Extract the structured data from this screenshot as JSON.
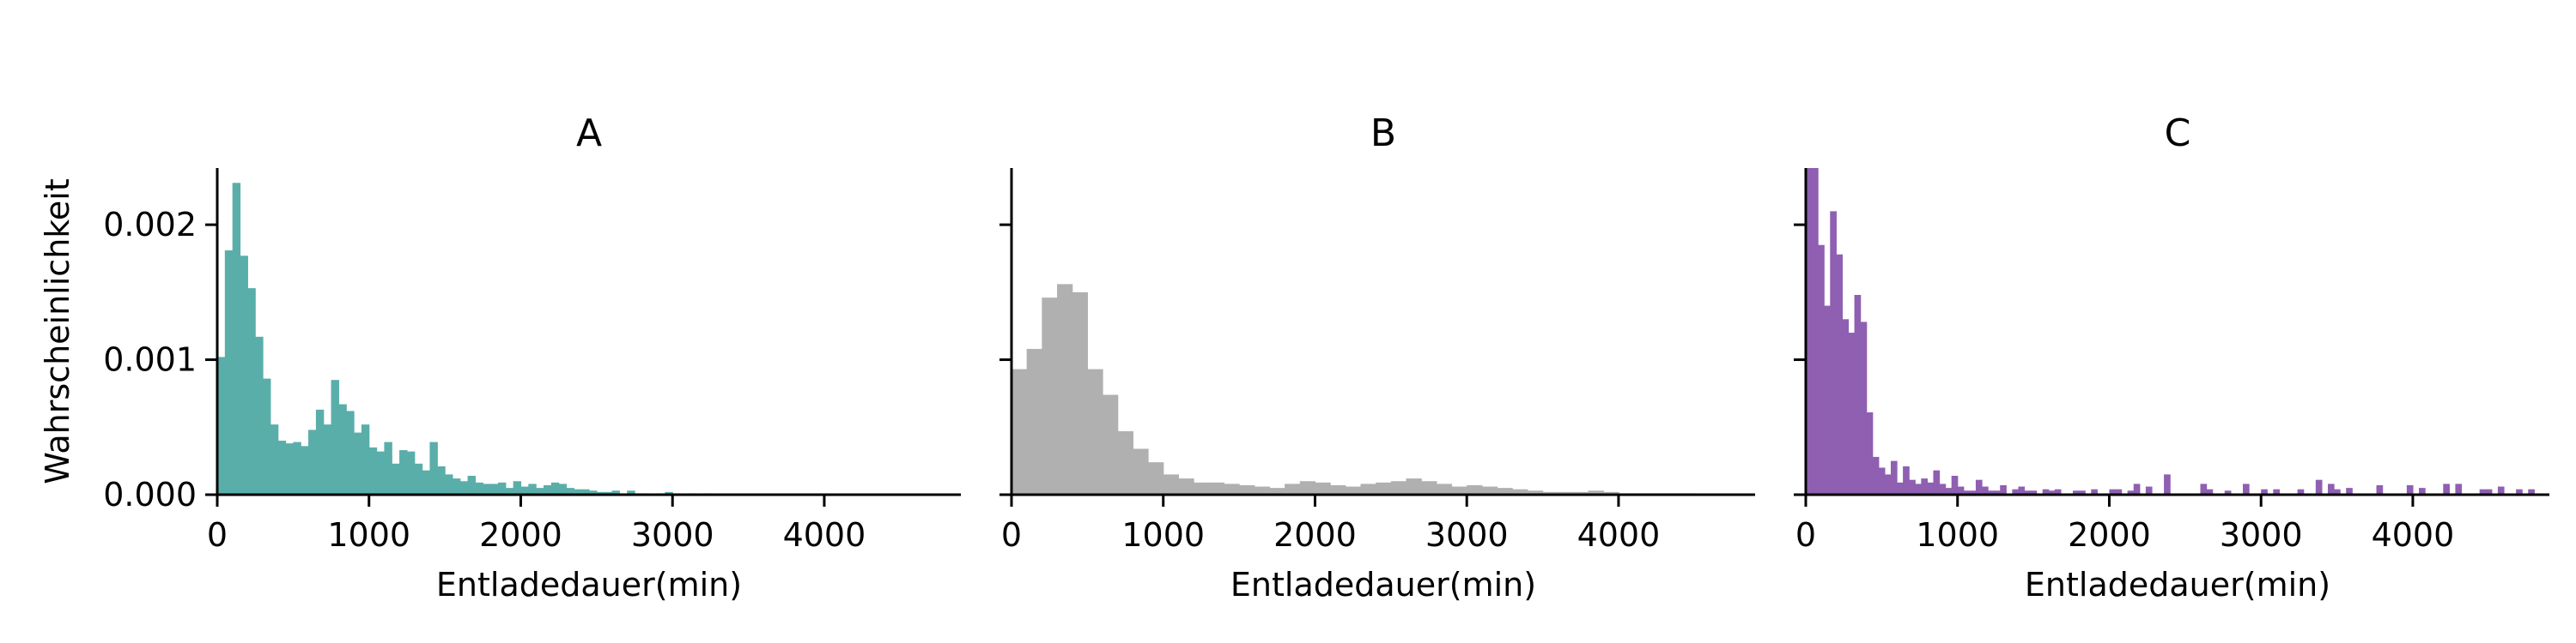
{
  "chart_data": [
    {
      "type": "histogram",
      "title": "A",
      "xlabel": "Entladedauer(min)",
      "ylabel": "Wahrscheinlichkeit",
      "color": "#5aaeaa",
      "xlim": [
        0,
        4900
      ],
      "ylim": [
        0,
        0.00242
      ],
      "xticks": [
        0,
        1000,
        2000,
        3000,
        4000
      ],
      "xtick_labels": [
        "0",
        "1000",
        "2000",
        "3000",
        "4000"
      ],
      "yticks": [
        0,
        0.001,
        0.002
      ],
      "ytick_labels": [
        "0.000",
        "0.001",
        "0.002"
      ],
      "bin_start": 0,
      "bin_width": 50,
      "values": [
        0.00102,
        0.00181,
        0.00231,
        0.00177,
        0.00153,
        0.00117,
        0.00086,
        0.00052,
        0.0004,
        0.00038,
        0.00039,
        0.00036,
        0.00048,
        0.00063,
        0.00052,
        0.00085,
        0.00067,
        0.00062,
        0.00046,
        0.00052,
        0.00035,
        0.00032,
        0.00039,
        0.00023,
        0.00033,
        0.00032,
        0.00023,
        0.00018,
        0.00039,
        0.00021,
        0.00015,
        0.00012,
        0.0001,
        0.00014,
        9e-05,
        8e-05,
        8e-05,
        9e-05,
        5e-05,
        0.0001,
        6e-05,
        8e-05,
        5e-05,
        7e-05,
        9e-05,
        8e-05,
        5e-05,
        4e-05,
        4e-05,
        3e-05,
        2e-05,
        2e-05,
        3e-05,
        1e-05,
        3e-05,
        1e-05,
        1e-05,
        0.0,
        1e-05,
        2e-05,
        1e-05,
        0.0,
        1e-05,
        0.0,
        1e-05
      ]
    },
    {
      "type": "histogram",
      "title": "B",
      "xlabel": "Entladedauer(min)",
      "color": "#b0b0b0",
      "xlim": [
        0,
        4900
      ],
      "ylim": [
        0,
        0.00242
      ],
      "xticks": [
        0,
        1000,
        2000,
        3000,
        4000
      ],
      "xtick_labels": [
        "0",
        "1000",
        "2000",
        "3000",
        "4000"
      ],
      "yticks": [
        0,
        0.001,
        0.002
      ],
      "ytick_labels": [
        "",
        "",
        ""
      ],
      "bin_start": 0,
      "bin_width": 100,
      "values": [
        0.00093,
        0.00108,
        0.00146,
        0.00156,
        0.0015,
        0.00093,
        0.00074,
        0.00047,
        0.00034,
        0.00024,
        0.00015,
        0.00012,
        9e-05,
        9e-05,
        8e-05,
        7e-05,
        6e-05,
        5e-05,
        8e-05,
        0.0001,
        9e-05,
        7e-05,
        6e-05,
        8e-05,
        9e-05,
        0.0001,
        0.00012,
        0.0001,
        8e-05,
        6e-05,
        7e-05,
        6e-05,
        5e-05,
        4e-05,
        3e-05,
        2e-05,
        2e-05,
        2e-05,
        3e-05,
        2e-05,
        1e-05,
        1e-05,
        1e-05,
        1e-05,
        1e-05
      ]
    },
    {
      "type": "histogram",
      "title": "C",
      "xlabel": "Entladedauer(min)",
      "color": "#8f5fb2",
      "xlim": [
        0,
        4900
      ],
      "ylim": [
        0,
        0.00242
      ],
      "xticks": [
        0,
        1000,
        2000,
        3000,
        4000
      ],
      "xtick_labels": [
        "0",
        "1000",
        "2000",
        "3000",
        "4000"
      ],
      "yticks": [
        0,
        0.001,
        0.002
      ],
      "ytick_labels": [
        "",
        "",
        ""
      ],
      "bin_start": 0,
      "bin_width": 40,
      "values": [
        0.00242,
        0.00242,
        0.00185,
        0.0014,
        0.0021,
        0.00178,
        0.0013,
        0.0012,
        0.00148,
        0.00128,
        0.00061,
        0.00028,
        0.0002,
        0.00015,
        0.00025,
        9e-05,
        0.00021,
        0.00011,
        8e-05,
        0.00012,
        9e-05,
        0.00018,
        8e-05,
        5e-05,
        0.00014,
        6e-05,
        3e-05,
        3e-05,
        0.00011,
        6e-05,
        3e-05,
        3e-05,
        7e-05,
        0.0,
        4e-05,
        6e-05,
        3e-05,
        3e-05,
        0.0,
        4e-05,
        3e-05,
        4e-05,
        0.0,
        0.0,
        3e-05,
        3e-05,
        0.0,
        4e-05,
        0.0,
        0.0,
        4e-05,
        4e-05,
        0.0,
        3e-05,
        8e-05,
        0.0,
        6e-05,
        0.0,
        0.0,
        0.00015,
        0.0,
        0.0,
        0.0,
        0.0,
        0.0,
        8e-05,
        4e-05,
        0.0,
        0.0,
        3e-05,
        0.0,
        0.0,
        8e-05,
        0.0,
        0.0,
        4e-05,
        0.0,
        4e-05,
        0.0,
        0.0,
        0.0,
        4e-05,
        0.0,
        0.0,
        0.00011,
        0.0,
        8e-05,
        4e-05,
        0.0,
        5e-05,
        0.0,
        0.0,
        0.0,
        0.0,
        7e-05,
        0.0,
        0.0,
        0.0,
        0.0,
        7e-05,
        0.0,
        5e-05,
        0.0,
        0.0,
        0.0,
        8e-05,
        0.0,
        8e-05,
        0.0,
        0.0,
        0.0,
        4e-05,
        4e-05,
        0.0,
        6e-05,
        0.0,
        0.0,
        4e-05,
        0.0,
        4e-05,
        0.0,
        0.0,
        0.0,
        0.0,
        0.0,
        0.0,
        0.0,
        0.0,
        3e-05,
        0.0,
        0.0,
        0.0,
        3e-05,
        0.0,
        0.0,
        0.0,
        0.0,
        0.0,
        0.0,
        0.0,
        0.0,
        0.0,
        0.0,
        0.0,
        0.0
      ]
    }
  ]
}
